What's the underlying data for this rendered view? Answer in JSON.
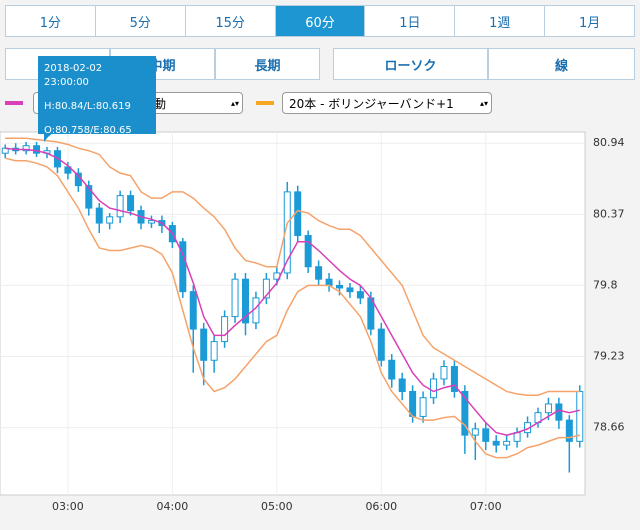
{
  "tabs": [
    {
      "label": "1分"
    },
    {
      "label": "5分"
    },
    {
      "label": "15分"
    },
    {
      "label": "60分",
      "active": true
    },
    {
      "label": "1日"
    },
    {
      "label": "1週"
    },
    {
      "label": "1月"
    }
  ],
  "buttons": [
    {
      "label": "中期"
    },
    {
      "label": "長期",
      "active": true
    }
  ],
  "chart_types": [
    {
      "label": "ローソク",
      "active": true
    },
    {
      "label": "線"
    }
  ],
  "indicators": [
    {
      "label": "動",
      "color": "#d83fb8"
    },
    {
      "label": "20本 - ボリンジャーバンド+1",
      "color": "#f5a623"
    }
  ],
  "tooltip": {
    "time": "2018-02-02 23:00:00",
    "hl": "H:80.84/L:80.619",
    "oe": "O:80.758/E:80.65"
  },
  "chart_data": {
    "type": "candlestick",
    "color": "#1b9ad6",
    "open": [
      80.86,
      80.9,
      80.88,
      80.92,
      80.86,
      80.88,
      80.75,
      80.7,
      80.6,
      80.42,
      80.3,
      80.35,
      80.52,
      80.4,
      80.3,
      80.32,
      80.28,
      80.15,
      79.75,
      79.45,
      79.2,
      79.35,
      79.55,
      79.85,
      79.5,
      79.7,
      79.85,
      79.9,
      80.55,
      80.2,
      79.95,
      79.85,
      79.8,
      79.78,
      79.75,
      79.7,
      79.45,
      79.2,
      79.05,
      78.95,
      78.75,
      78.9,
      79.05,
      79.15,
      78.95,
      78.6,
      78.65,
      78.55,
      78.52,
      78.55,
      78.62,
      78.7,
      78.78,
      78.85,
      78.72,
      78.55
    ],
    "high": [
      80.93,
      80.94,
      80.95,
      80.95,
      80.91,
      80.91,
      80.79,
      80.74,
      80.64,
      80.46,
      80.38,
      80.56,
      80.56,
      80.44,
      80.36,
      80.36,
      80.31,
      80.18,
      79.8,
      79.5,
      79.4,
      79.6,
      79.9,
      79.9,
      79.75,
      79.9,
      79.95,
      80.63,
      80.6,
      80.24,
      80.0,
      79.9,
      79.84,
      79.82,
      79.8,
      79.75,
      79.5,
      79.25,
      79.1,
      79.0,
      78.95,
      79.1,
      79.2,
      79.2,
      79.0,
      78.7,
      78.7,
      78.6,
      78.6,
      78.66,
      78.75,
      78.82,
      78.9,
      78.9,
      78.76,
      79.0
    ],
    "low": [
      80.82,
      80.85,
      80.85,
      80.83,
      80.82,
      80.7,
      80.65,
      80.55,
      80.36,
      80.22,
      80.25,
      80.3,
      80.36,
      80.25,
      80.26,
      80.22,
      80.1,
      79.7,
      79.1,
      79.0,
      79.1,
      79.3,
      79.5,
      79.4,
      79.45,
      79.65,
      79.8,
      79.85,
      80.15,
      79.9,
      79.8,
      79.75,
      79.72,
      79.7,
      79.65,
      79.4,
      79.15,
      78.98,
      78.88,
      78.7,
      78.7,
      78.85,
      79.0,
      78.9,
      78.45,
      78.4,
      78.48,
      78.46,
      78.48,
      78.5,
      78.58,
      78.66,
      78.72,
      78.65,
      78.3,
      78.5
    ],
    "close": [
      80.9,
      80.88,
      80.92,
      80.86,
      80.88,
      80.75,
      80.7,
      80.6,
      80.42,
      80.3,
      80.35,
      80.52,
      80.4,
      80.3,
      80.32,
      80.28,
      80.15,
      79.75,
      79.45,
      79.2,
      79.35,
      79.55,
      79.85,
      79.5,
      79.7,
      79.85,
      79.9,
      80.55,
      80.2,
      79.95,
      79.85,
      79.8,
      79.78,
      79.75,
      79.7,
      79.45,
      79.2,
      79.05,
      78.95,
      78.75,
      78.9,
      79.05,
      79.15,
      78.95,
      78.6,
      78.65,
      78.55,
      78.52,
      78.55,
      78.62,
      78.7,
      78.78,
      78.85,
      78.72,
      78.55,
      78.95
    ],
    "series": [
      {
        "color": "#d83fb8",
        "values": [
          80.9,
          80.89,
          80.89,
          80.88,
          80.86,
          80.82,
          80.76,
          80.68,
          80.58,
          80.48,
          80.42,
          80.4,
          80.38,
          80.35,
          80.33,
          80.3,
          80.22,
          80.05,
          79.82,
          79.55,
          79.4,
          79.4,
          79.48,
          79.55,
          79.62,
          79.72,
          79.82,
          80.0,
          80.15,
          80.15,
          80.08,
          80.0,
          79.92,
          79.85,
          79.8,
          79.7,
          79.55,
          79.4,
          79.25,
          79.1,
          79.0,
          78.95,
          78.98,
          79.0,
          78.9,
          78.8,
          78.7,
          78.62,
          78.6,
          78.62,
          78.65,
          78.7,
          78.75,
          78.8,
          78.78,
          78.8
        ]
      },
      {
        "color": "#f5a36a",
        "values": [
          80.98,
          80.98,
          80.98,
          80.97,
          80.96,
          80.95,
          80.93,
          80.9,
          80.88,
          80.85,
          80.75,
          80.7,
          80.68,
          80.55,
          80.5,
          80.5,
          80.55,
          80.55,
          80.5,
          80.42,
          80.35,
          80.25,
          80.1,
          80.0,
          79.98,
          79.95,
          79.95,
          80.3,
          80.4,
          80.38,
          80.32,
          80.28,
          80.25,
          80.25,
          80.2,
          80.1,
          80.0,
          79.9,
          79.8,
          79.6,
          79.4,
          79.3,
          79.25,
          79.2,
          79.15,
          79.1,
          79.05,
          79.0,
          78.95,
          78.93,
          78.92,
          78.92,
          78.95,
          78.95,
          78.95,
          78.95
        ]
      },
      {
        "color": "#f5a36a",
        "values": [
          80.82,
          80.8,
          80.8,
          80.78,
          80.75,
          80.68,
          80.55,
          80.42,
          80.25,
          80.1,
          80.08,
          80.08,
          80.1,
          80.12,
          80.1,
          80.05,
          79.9,
          79.6,
          79.3,
          79.05,
          78.95,
          78.98,
          79.05,
          79.15,
          79.25,
          79.35,
          79.4,
          79.6,
          79.75,
          79.8,
          79.8,
          79.8,
          79.75,
          79.65,
          79.55,
          79.35,
          79.1,
          78.95,
          78.85,
          78.75,
          78.72,
          78.72,
          78.74,
          78.75,
          78.68,
          78.55,
          78.45,
          78.42,
          78.42,
          78.45,
          78.5,
          78.52,
          78.55,
          78.58,
          78.58,
          78.6
        ]
      }
    ],
    "ylim": [
      78.12,
      81.03
    ],
    "yticks": [
      78.66,
      79.23,
      79.8,
      80.37,
      80.94
    ],
    "xlim": [
      -0.5,
      55.5
    ],
    "xticks": [
      {
        "value": 6,
        "label": "03:00"
      },
      {
        "value": 16,
        "label": "04:00"
      },
      {
        "value": 26,
        "label": "05:00"
      },
      {
        "value": 36,
        "label": "06:00"
      },
      {
        "value": 46,
        "label": "07:00"
      }
    ],
    "grid": true
  }
}
